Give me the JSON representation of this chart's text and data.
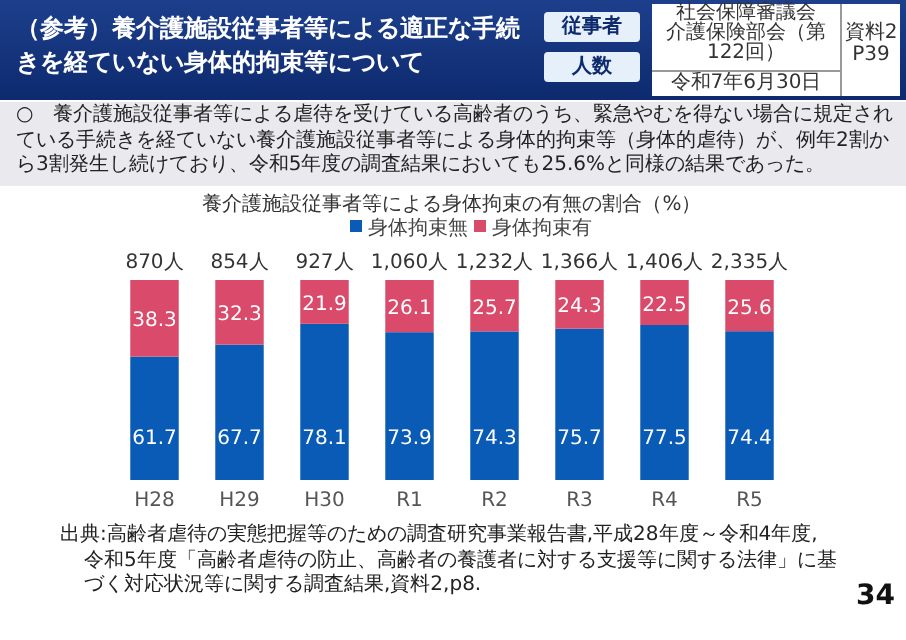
{
  "chart_data": {
    "type": "bar",
    "stacked": true,
    "title": "（参考）養介護施設従事者等による適正な手続きを経ていない身体的拘束等について",
    "subtitle": "養介護施設従事者等による身体拘束の有無の割合（%）",
    "annotations": [
      "○　養介護施設従事者等による虐待を受けている高齢者のうち、緊急やむを得ない場合に規定されている手続きを経ていない養介護施設従事者等による身体的拘束等（身体的虐待）が、例年2割から3割発生し続けており、令和5年度の調査結果においても25.6%と同様の結果であった。",
      "従事者",
      "人数",
      "社会保障審議会",
      "介護保険部会（第122回）",
      "令和7年6月30日",
      "資料2",
      "P39",
      "出典:高齢者虐待の実態把握等のための調査研究事業報告書,平成28年度～令和4年度,",
      "令和5年度「高齢者虐待の防止、高齢者の養護者に対する支援等に関する法律」に基づく対応状況等に関する調査結果,資料2,p8.",
      "34",
      {
        "text": "870人",
        "x": "H28",
        "y": 100
      },
      {
        "text": "854人",
        "x": "H29",
        "y": 100
      },
      {
        "text": "927人",
        "x": "H30",
        "y": 100
      },
      {
        "text": "1,060人",
        "x": "R1",
        "y": 100
      },
      {
        "text": "1,232人",
        "x": "R2",
        "y": 100
      },
      {
        "text": "1,366人",
        "x": "R3",
        "y": 100
      },
      {
        "text": "1,406人",
        "x": "R4",
        "y": 100
      },
      {
        "text": "2,335人",
        "x": "R5",
        "y": 100
      }
    ],
    "categories": [
      "H28",
      "H29",
      "H30",
      "R1",
      "R2",
      "R3",
      "R4",
      "R5"
    ],
    "ylim": [
      0,
      100
    ],
    "series": [
      {
        "name": "身体拘束無",
        "color": "#0a5bb5",
        "values": [
          61.7,
          67.7,
          78.1,
          73.9,
          74.3,
          75.7,
          77.5,
          74.4
        ]
      },
      {
        "name": "身体拘束有",
        "color": "#d94a6b",
        "values": [
          38.3,
          32.3,
          21.9,
          26.1,
          25.7,
          24.3,
          22.5,
          25.6
        ]
      }
    ],
    "data_labels": true,
    "legend": "top"
  }
}
